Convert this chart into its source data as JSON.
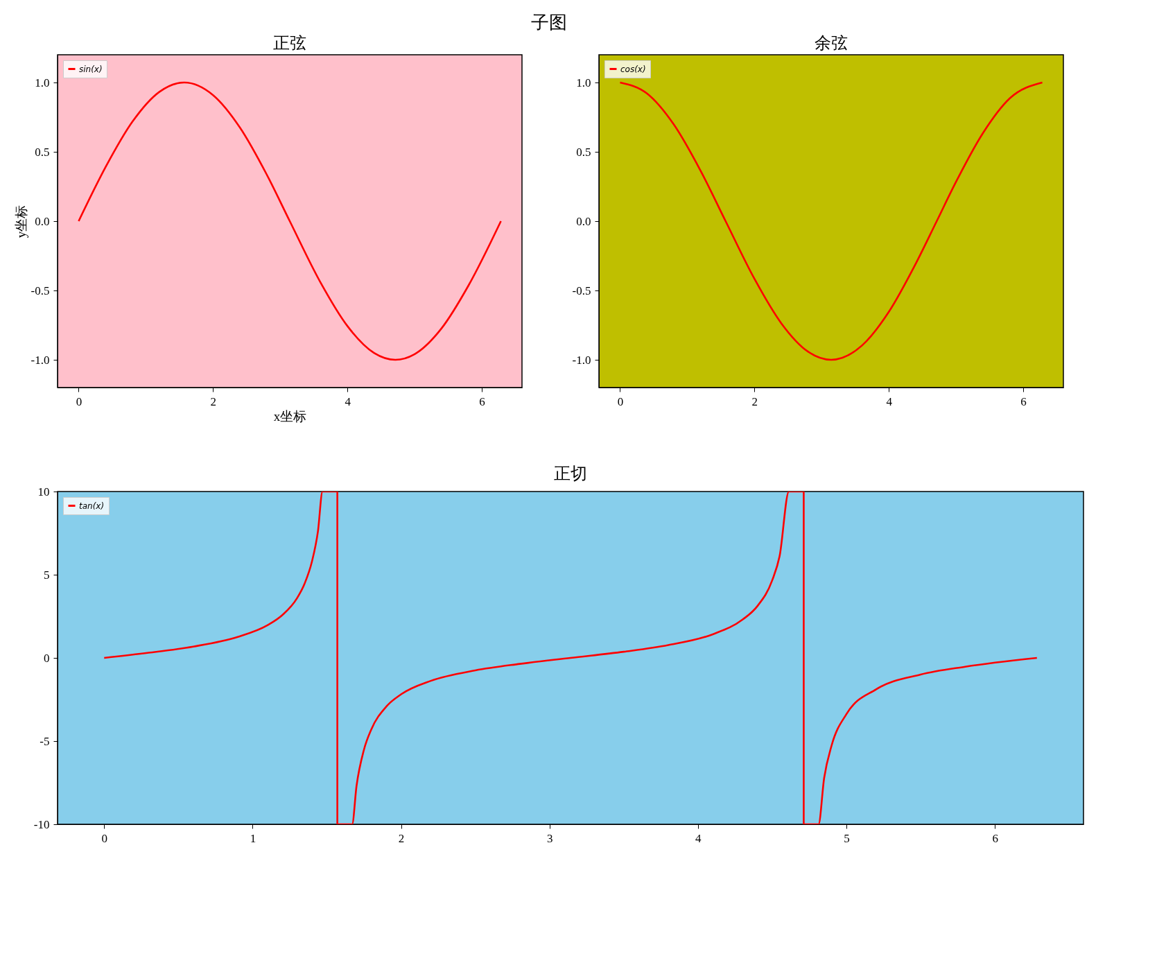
{
  "chart_data": [
    {
      "type": "line",
      "title": "正弦",
      "xlabel": "x坐标",
      "ylabel": "y坐标",
      "annotations": [
        "子图"
      ],
      "legend": "top left",
      "grid": false,
      "line_style": "solid",
      "xlim": [
        -0.314,
        6.597
      ],
      "xticks": [
        0,
        2,
        4,
        6
      ],
      "ylim": [
        -1.2,
        1.2
      ],
      "yticks": [
        {
          "value": -1,
          "label": "-1.0"
        },
        {
          "value": -0.5,
          "label": "-0.5"
        },
        {
          "value": 0,
          "label": "0.0"
        },
        {
          "value": 0.5,
          "label": "0.5"
        },
        {
          "value": 1,
          "label": "1.0"
        }
      ],
      "x": [
        0,
        0.4,
        0.8,
        1.2,
        1.5708,
        2.0,
        2.4,
        2.8,
        3.1416,
        3.6,
        4.0,
        4.4,
        4.7124,
        5.0,
        5.4,
        5.8,
        6.2832
      ],
      "series": [
        {
          "name": "sin(x)",
          "color": "#ff0000",
          "values": [
            0,
            0.389,
            0.717,
            0.932,
            1,
            0.909,
            0.675,
            0.335,
            0,
            -0.443,
            -0.757,
            -0.952,
            -1,
            -0.959,
            -0.773,
            -0.465,
            0
          ]
        }
      ]
    },
    {
      "type": "line",
      "title": "余弦",
      "legend": "top left",
      "grid": false,
      "line_style": "solid",
      "xlim": [
        -0.314,
        6.597
      ],
      "xticks": [
        0,
        2,
        4,
        6
      ],
      "ylim": [
        -1.2,
        1.2
      ],
      "yticks": [
        {
          "value": -1,
          "label": "-1.0"
        },
        {
          "value": -0.5,
          "label": "-0.5"
        },
        {
          "value": 0,
          "label": "0.0"
        },
        {
          "value": 0.5,
          "label": "0.5"
        },
        {
          "value": 1,
          "label": "1.0"
        }
      ],
      "x": [
        0,
        0.4,
        0.8,
        1.2,
        1.5708,
        2.0,
        2.4,
        2.8,
        3.1416,
        3.6,
        4.0,
        4.4,
        4.7124,
        5.0,
        5.4,
        5.8,
        6.2832
      ],
      "series": [
        {
          "name": "cos(x)",
          "color": "#ff0000",
          "values": [
            1,
            0.921,
            0.697,
            0.362,
            0,
            -0.416,
            -0.737,
            -0.942,
            -1,
            -0.897,
            -0.654,
            -0.307,
            0,
            0.284,
            0.635,
            0.886,
            1
          ]
        }
      ]
    },
    {
      "type": "line",
      "title": "正切",
      "legend": "top left",
      "grid": false,
      "line_style": "solid",
      "xlim": [
        -0.314,
        6.597
      ],
      "xticks": [
        0,
        1,
        2,
        3,
        4,
        5,
        6
      ],
      "ylim": [
        -10,
        10
      ],
      "yticks": [
        -10,
        -5,
        0,
        5,
        10
      ],
      "x": [
        0,
        0.3,
        0.6,
        0.9,
        1.1,
        1.2,
        1.3,
        1.35,
        1.4,
        1.44,
        1.4711,
        1.5708,
        1.5708,
        1.6705,
        1.7,
        1.75,
        1.8,
        1.9,
        2.0,
        2.2,
        2.5,
        2.8,
        3.1416,
        3.5,
        3.8,
        4.1,
        4.3,
        4.4,
        4.5,
        4.55,
        4.6126,
        4.7124,
        4.7124,
        4.8122,
        4.85,
        4.9,
        5.0,
        5.2,
        5.5,
        5.8,
        6.2832
      ],
      "series": [
        {
          "name": "tan(x)",
          "color": "#ff0000",
          "values": [
            0,
            0.31,
            0.68,
            1.26,
            1.96,
            2.57,
            3.6,
            4.46,
            5.8,
            7.6,
            10,
            10,
            -10,
            -10,
            -7.7,
            -5.52,
            -4.29,
            -2.93,
            -2.19,
            -1.38,
            -0.75,
            -0.36,
            0,
            0.37,
            0.77,
            1.42,
            2.3,
            3.11,
            4.66,
            6.12,
            10,
            10,
            -10,
            -10,
            -7.22,
            -5.27,
            -3.38,
            -1.89,
            -1.0,
            -0.53,
            0
          ]
        }
      ]
    }
  ]
}
